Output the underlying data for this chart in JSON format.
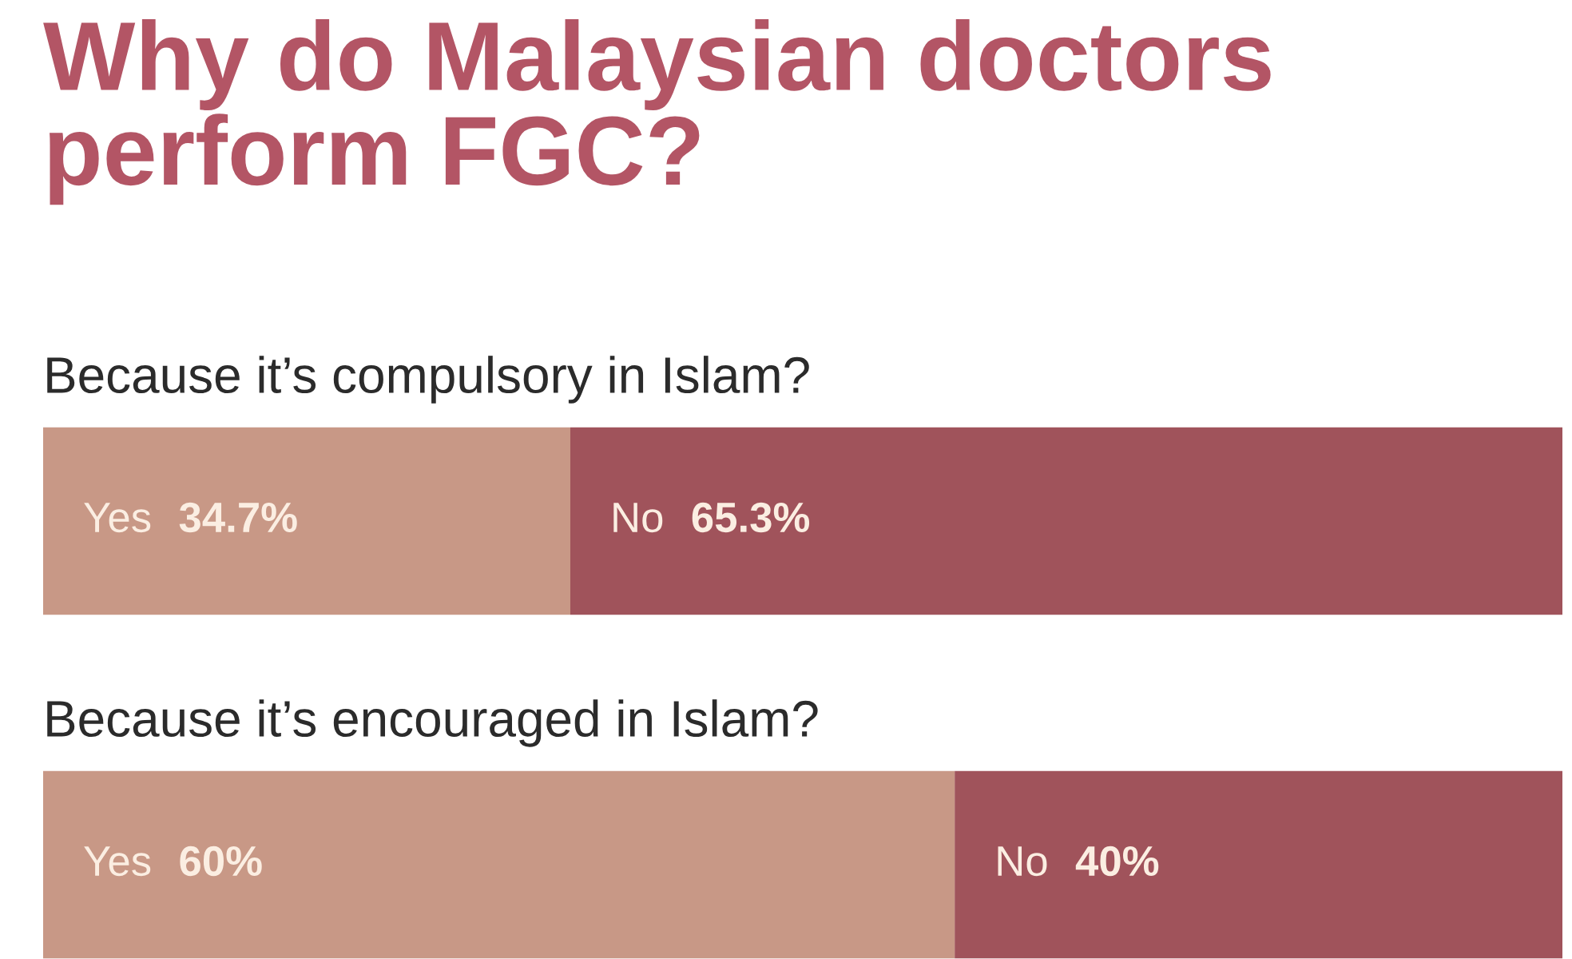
{
  "chart_data": {
    "type": "bar",
    "orientation": "horizontal",
    "stacked": true,
    "title": "Why do Malaysian doctors\nperform FGC?",
    "categories": [
      "Because it’s compulsory in Islam?",
      "Because it’s encouraged in Islam?"
    ],
    "series": [
      {
        "name": "Yes",
        "color": "#c89886",
        "values": [
          34.7,
          60
        ],
        "value_labels": [
          "34.7%",
          "60%"
        ]
      },
      {
        "name": "No",
        "color": "#a0535b",
        "values": [
          65.3,
          40
        ],
        "value_labels": [
          "65.3%",
          "40%"
        ]
      }
    ],
    "xlim": [
      0,
      100
    ]
  }
}
